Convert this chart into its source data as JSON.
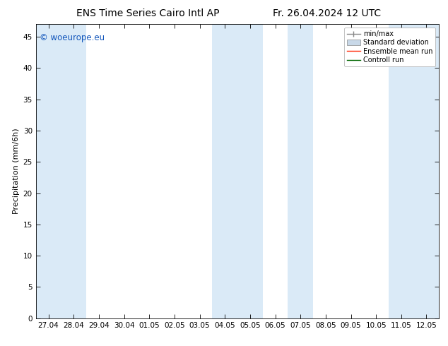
{
  "title_left": "ENS Time Series Cairo Intl AP",
  "title_right": "Fr. 26.04.2024 12 UTC",
  "ylabel": "Precipitation (mm/6h)",
  "ylim": [
    0,
    47
  ],
  "yticks": [
    0,
    5,
    10,
    15,
    20,
    25,
    30,
    35,
    40,
    45
  ],
  "x_labels": [
    "27.04",
    "28.04",
    "29.04",
    "30.04",
    "01.05",
    "02.05",
    "03.05",
    "04.05",
    "05.05",
    "06.05",
    "07.05",
    "08.05",
    "09.05",
    "10.05",
    "11.05",
    "12.05"
  ],
  "shaded_x_indices": [
    0,
    1,
    4,
    5,
    10,
    15
  ],
  "band_color": "#daeaf7",
  "background_color": "#ffffff",
  "watermark_text": "© woeurope.eu",
  "watermark_color": "#1155bb",
  "title_fontsize": 10,
  "axis_label_fontsize": 8,
  "tick_fontsize": 7.5,
  "legend_fontsize": 7
}
